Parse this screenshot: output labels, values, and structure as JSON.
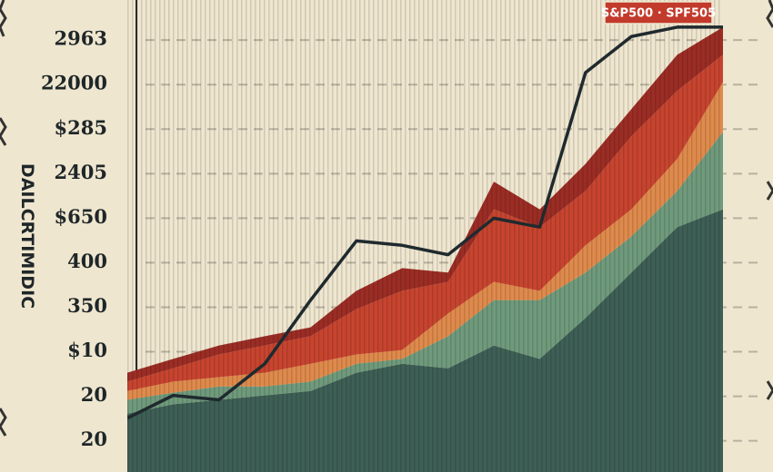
{
  "chart_data": {
    "type": "area",
    "y_label": "DAILCRTIMIDIC",
    "categories": [
      null,
      null,
      null,
      null,
      null,
      null,
      null,
      null,
      null,
      null,
      null,
      null,
      null,
      null
    ],
    "ylim": [
      0.3,
      10.9
    ],
    "yticks": [
      {
        "value": 1,
        "label": "20"
      },
      {
        "value": 2,
        "label": "20"
      },
      {
        "value": 3,
        "label": "$10"
      },
      {
        "value": 4,
        "label": "350"
      },
      {
        "value": 5,
        "label": "400"
      },
      {
        "value": 6,
        "label": "$650"
      },
      {
        "value": 7,
        "label": "2405"
      },
      {
        "value": 8,
        "label": "$285"
      },
      {
        "value": 9,
        "label": "22000"
      },
      {
        "value": 10,
        "label": "2963"
      }
    ],
    "grid": true,
    "stacked": true,
    "legend": "top-right",
    "series": [
      {
        "color": "#3e5f55",
        "values": [
          1.61,
          1.82,
          1.92,
          2.02,
          2.12,
          2.53,
          2.73,
          2.63,
          3.14,
          2.84,
          3.76,
          4.78,
          5.8,
          6.2
        ]
      },
      {
        "color": "#6f9a7c",
        "values": [
          0.31,
          0.26,
          0.3,
          0.2,
          0.21,
          0.2,
          0.11,
          0.72,
          1.02,
          1.32,
          1.02,
          0.81,
          0.81,
          1.74
        ]
      },
      {
        "color": "#df8a4c",
        "values": [
          0.2,
          0.25,
          0.21,
          0.31,
          0.4,
          0.21,
          0.2,
          0.51,
          0.41,
          0.21,
          0.61,
          0.61,
          0.72,
          1.12
        ]
      },
      {
        "color": "#c7442f",
        "values": [
          0.21,
          0.3,
          0.51,
          0.61,
          0.62,
          1.02,
          1.33,
          0.71,
          1.63,
          1.43,
          1.22,
          1.64,
          1.53,
          0.61
        ]
      },
      {
        "color": "#9b2d25",
        "values": [
          0.2,
          0.21,
          0.2,
          0.21,
          0.2,
          0.41,
          0.51,
          0.21,
          0.62,
          0.4,
          0.61,
          0.61,
          0.81,
          0.62
        ]
      },
      {
        "type": "line",
        "name": "S&P500 · SPF505",
        "color": "#1f2a2e",
        "values": [
          1.51,
          2.02,
          1.92,
          2.73,
          4.16,
          5.49,
          5.39,
          5.18,
          6.0,
          5.8,
          9.27,
          10.08,
          10.29,
          10.29
        ]
      }
    ]
  }
}
